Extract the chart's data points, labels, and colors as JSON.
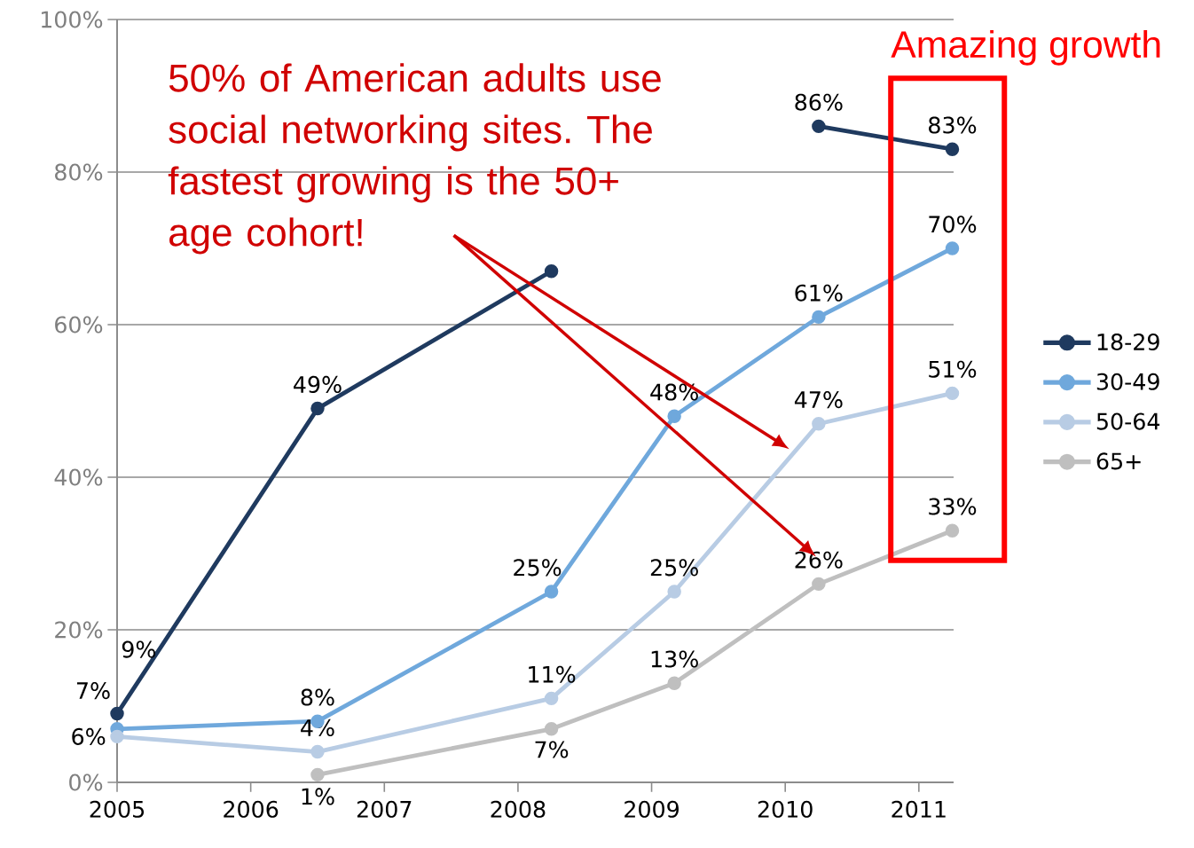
{
  "chart_data": {
    "type": "line",
    "x": [
      2005,
      2006.5,
      2008.25,
      2009.17,
      2010.25,
      2011.25
    ],
    "series": [
      {
        "name": "18-29",
        "color": "#1f3a5f",
        "values": [
          9,
          49,
          67,
          null,
          86,
          83
        ],
        "value_labels": [
          "9%",
          "49%",
          null,
          null,
          "86%",
          "83%"
        ]
      },
      {
        "name": "30-49",
        "color": "#6fa8dc",
        "values": [
          7,
          8,
          25,
          48,
          61,
          70
        ],
        "value_labels": [
          "7%",
          "8%",
          "25%",
          "48%",
          "61%",
          "70%"
        ]
      },
      {
        "name": "50-64",
        "color": "#b8cce4",
        "values": [
          6,
          4,
          11,
          25,
          47,
          51
        ],
        "value_labels": [
          "6%",
          "4%",
          "11%",
          "25%",
          "47%",
          "51%"
        ]
      },
      {
        "name": "65+",
        "color": "#bfbfbf",
        "values": [
          null,
          1,
          7,
          13,
          26,
          33
        ],
        "value_labels": [
          null,
          "1%",
          "7%",
          "13%",
          "26%",
          "33%"
        ]
      }
    ],
    "xlim": [
      2005,
      2011.26
    ],
    "xticks": [
      2005,
      2006,
      2007,
      2008,
      2009,
      2010,
      2011
    ],
    "ylim": [
      0,
      100
    ],
    "yticks": [
      {
        "value": 0,
        "label": "0%"
      },
      {
        "value": 20,
        "label": "20%"
      },
      {
        "value": 40,
        "label": "40%"
      },
      {
        "value": 60,
        "label": "60%"
      },
      {
        "value": 80,
        "label": "80%"
      },
      {
        "value": 100,
        "label": "100%"
      }
    ],
    "grid": "y",
    "legend": "right",
    "marker": "circle",
    "line_style": "solid",
    "annotations": [
      "50% of American adults use social networking sites. The fastest growing is the 50+ age cohort!",
      "Amazing growth"
    ]
  }
}
